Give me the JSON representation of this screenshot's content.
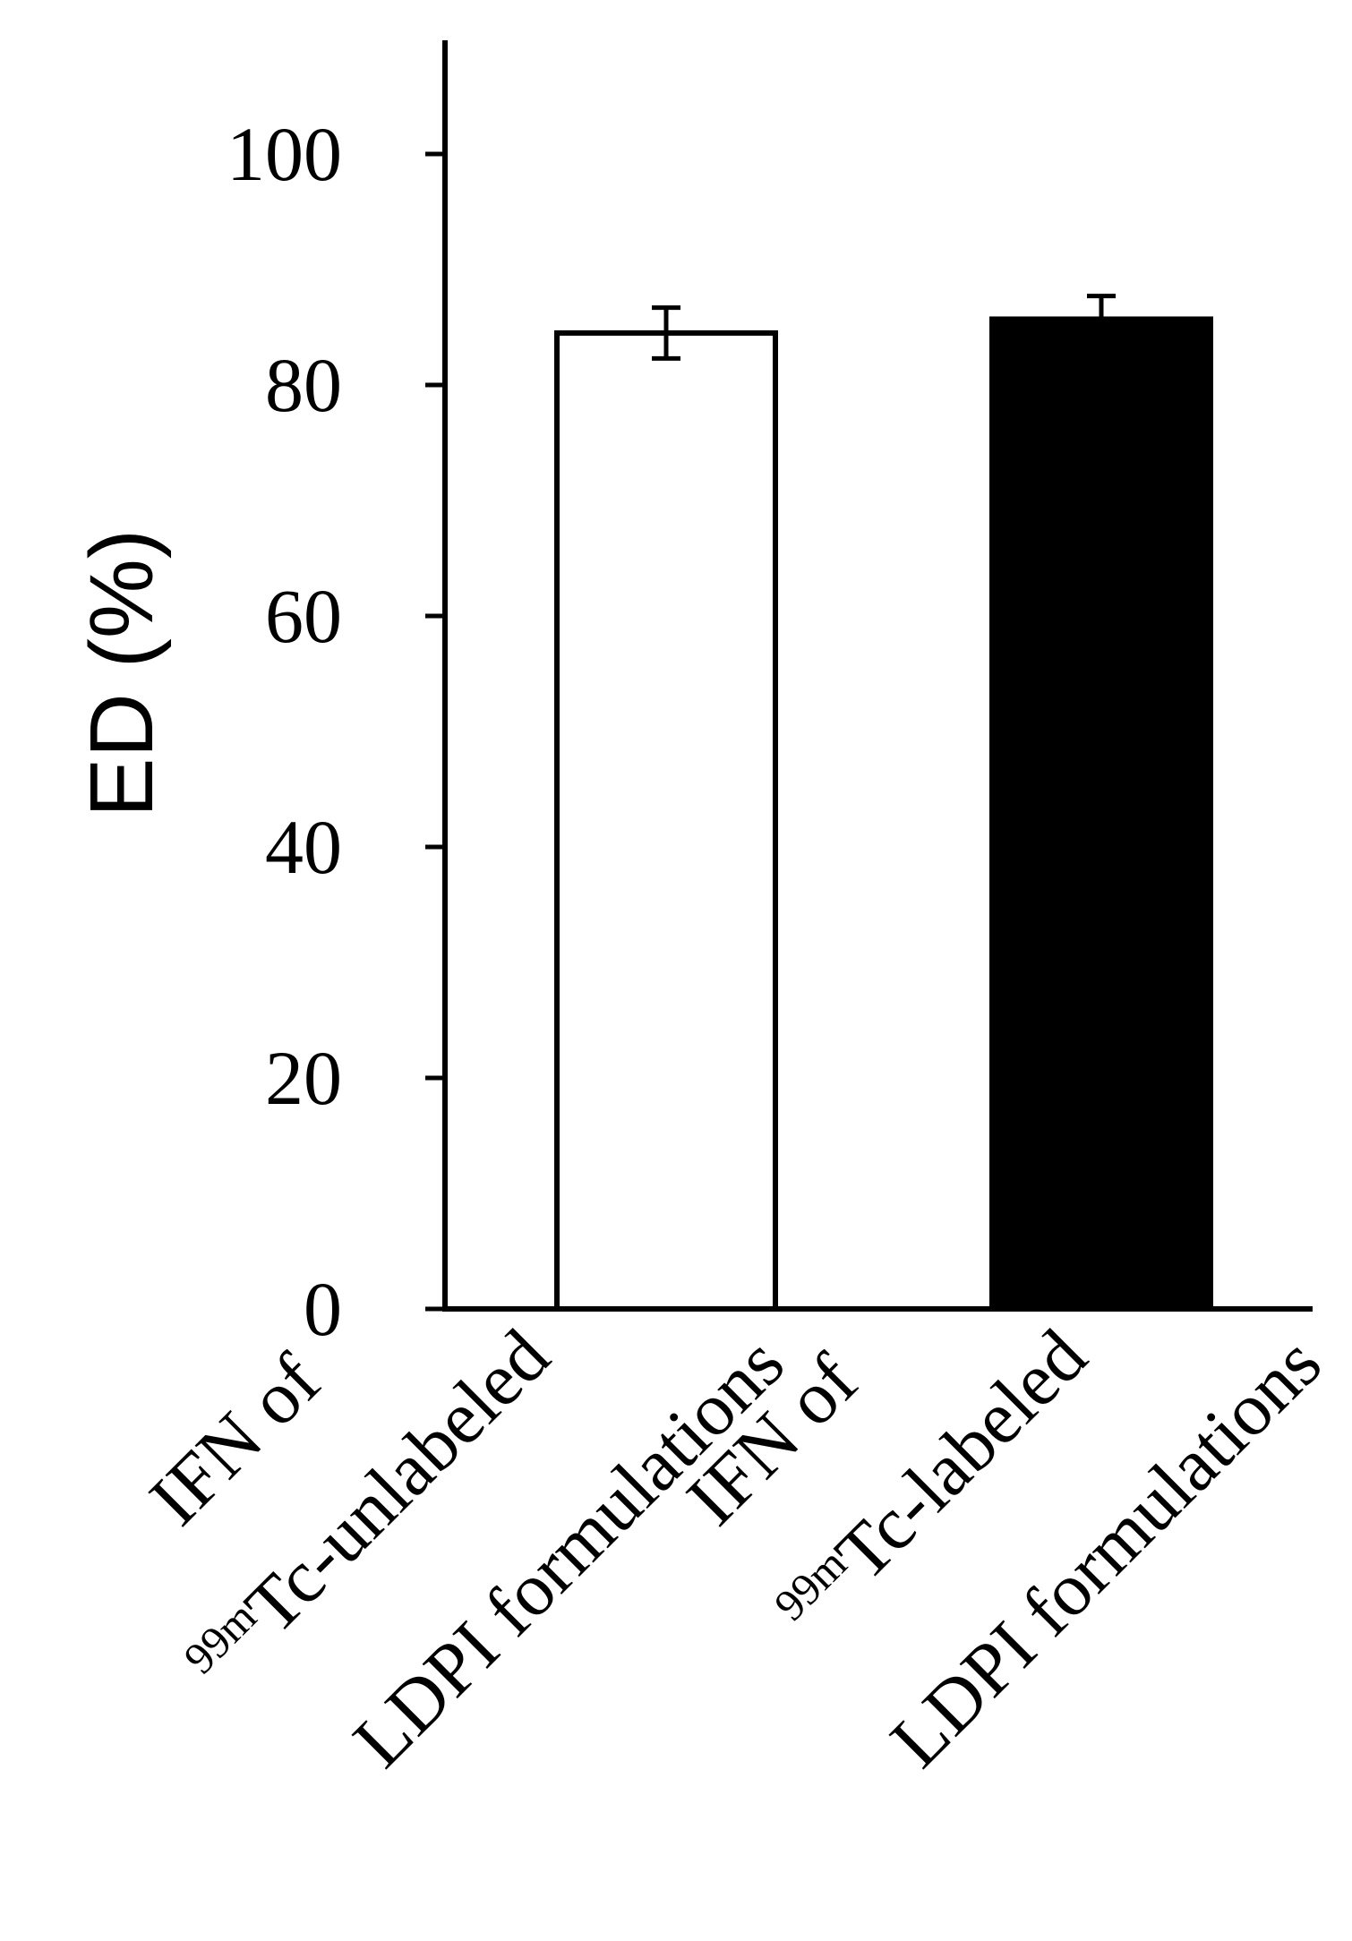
{
  "chart_data": {
    "type": "bar",
    "title": "",
    "ylabel": "ED (%)",
    "xlabel": "",
    "ylim": [
      0,
      110
    ],
    "yticks": [
      0,
      20,
      40,
      60,
      80,
      100
    ],
    "grid": false,
    "categories": [
      {
        "lines": [
          {
            "text": "IFN of"
          },
          {
            "sup": "99m",
            "text": "Tc-unlabeled"
          },
          {
            "text": "LDPI formulations"
          }
        ]
      },
      {
        "lines": [
          {
            "text": "IFN of"
          },
          {
            "sup": "99m",
            "text": "Tc-labeled"
          },
          {
            "text": "LDPI formulations"
          }
        ]
      }
    ],
    "values": [
      84.5,
      85.7
    ],
    "error": [
      2.2,
      2.0
    ],
    "fill_colors": [
      "#ffffff",
      "#000000"
    ],
    "stroke_color": "#000000"
  }
}
